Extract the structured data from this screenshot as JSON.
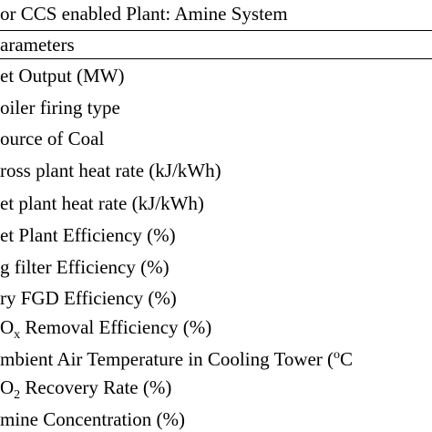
{
  "table": {
    "title": "or CCS enabled Plant: Amine System",
    "column_header": "arameters",
    "rows": [
      {
        "label": "et Output (MW)"
      },
      {
        "label": "oiler firing type"
      },
      {
        "label": "ource of Coal"
      },
      {
        "label": "ross plant heat rate (kJ/kWh)"
      },
      {
        "label": "et plant heat rate (kJ/kWh)"
      },
      {
        "label": "et Plant Efficiency (%)"
      },
      {
        "label": "g filter Efficiency (%)"
      },
      {
        "label": "ry FGD Efficiency (%)"
      },
      {
        "label_pre": "O",
        "label_sub": "x",
        "label_post": " Removal Efficiency (%)"
      },
      {
        "label_pre": "mbient Air Temperature in Cooling Tower (",
        "label_sup": "o",
        "label_post": "C"
      },
      {
        "label_pre": "O",
        "label_sub": "2",
        "label_post": " Recovery Rate (%)"
      },
      {
        "label": "mine Concentration (%)"
      }
    ]
  }
}
